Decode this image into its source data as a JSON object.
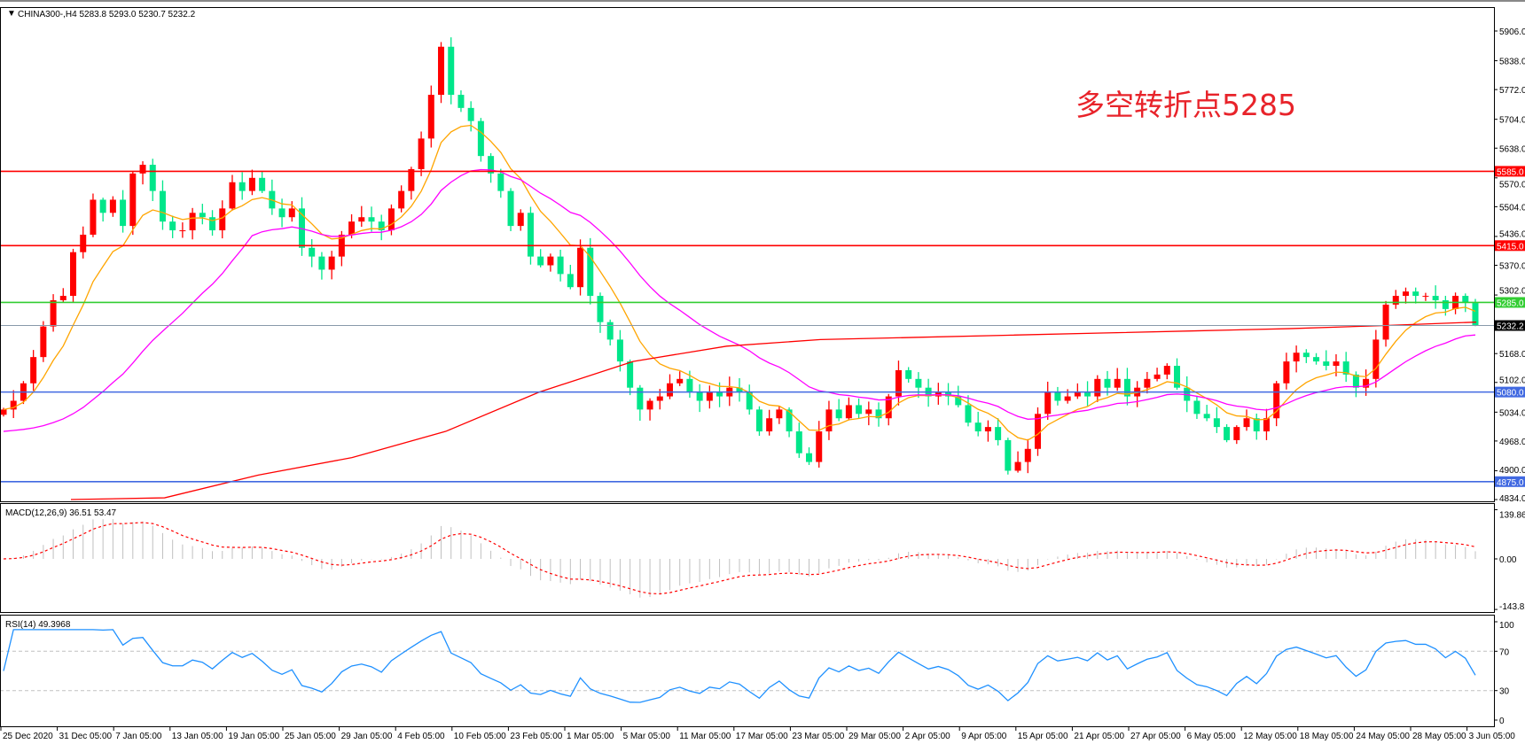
{
  "header": {
    "symbol_line": "CHINA300-,H4  5283.8 5293.0 5230.7 5232.2",
    "dropdown_icon": "triangle-down-icon"
  },
  "annotation": "多空转折点5285",
  "colors": {
    "up_candle": "#ff0000",
    "down_candle": "#00e68a",
    "ma_fast": "#ffa500",
    "ma_mid": "#ff00ff",
    "ma_slow": "#ff0000",
    "rsi": "#1e90ff",
    "macd_hist": "#c0c0c0",
    "macd_signal": "#ff0000"
  },
  "levels": [
    {
      "value": 5585.0,
      "label": "5585.0",
      "color": "#ff0000"
    },
    {
      "value": 5415.0,
      "label": "5415.0",
      "color": "#ff0000"
    },
    {
      "value": 5285.0,
      "label": "5285.0",
      "color": "#32cd32"
    },
    {
      "value": 5232.2,
      "label": "5232.2",
      "color": "#000000",
      "line_color": "#8899aa"
    },
    {
      "value": 5080.0,
      "label": "5080.0",
      "color": "#4169e1"
    },
    {
      "value": 4875.0,
      "label": "4875.0",
      "color": "#4169e1"
    }
  ],
  "price_axis": [
    "5906.0",
    "5838.0",
    "5772.0",
    "5704.0",
    "5638.0",
    "5570.0",
    "5504.0",
    "5436.0",
    "5370.0",
    "5302.0",
    "5168.0",
    "5102.0",
    "5034.0",
    "4968.0",
    "4900.0",
    "4834.0"
  ],
  "macd": {
    "label": "MACD(12,26,9) 36.51 53.47",
    "axis": [
      "139.86",
      "0.00",
      "-143.82"
    ]
  },
  "rsi": {
    "label": "RSI(14) 49.3968",
    "axis": [
      "100",
      "70",
      "30",
      "0"
    ]
  },
  "time_axis": [
    "25 Dec 2020",
    "31 Dec 05:00",
    "7 Jan 05:00",
    "13 Jan 05:00",
    "19 Jan 05:00",
    "25 Jan 05:00",
    "29 Jan 05:00",
    "4 Feb 05:00",
    "10 Feb 05:00",
    "23 Feb 05:00",
    "1 Mar 05:00",
    "5 Mar 05:00",
    "11 Mar 05:00",
    "17 Mar 05:00",
    "23 Mar 05:00",
    "29 Mar 05:00",
    "2 Apr 05:00",
    "9 Apr 05:00",
    "15 Apr 05:00",
    "21 Apr 05:00",
    "27 Apr 05:00",
    "6 May 05:00",
    "12 May 05:00",
    "18 May 05:00",
    "24 May 05:00",
    "28 May 05:00",
    "3 Jun 05:00"
  ],
  "chart_data": {
    "type": "candlestick",
    "symbol": "CHINA300-",
    "timeframe": "H4",
    "last_bar": {
      "open": 5283.8,
      "high": 5293.0,
      "low": 5230.7,
      "close": 5232.2
    },
    "ylim": [
      4834,
      5906
    ],
    "closes": [
      5040,
      5060,
      5100,
      5160,
      5230,
      5290,
      5300,
      5400,
      5440,
      5520,
      5490,
      5520,
      5460,
      5580,
      5600,
      5540,
      5470,
      5450,
      5450,
      5490,
      5480,
      5450,
      5500,
      5560,
      5540,
      5570,
      5540,
      5500,
      5480,
      5500,
      5410,
      5390,
      5360,
      5390,
      5440,
      5470,
      5480,
      5470,
      5450,
      5500,
      5540,
      5590,
      5660,
      5760,
      5870,
      5760,
      5730,
      5700,
      5620,
      5580,
      5540,
      5460,
      5490,
      5390,
      5370,
      5390,
      5350,
      5320,
      5410,
      5300,
      5240,
      5200,
      5150,
      5090,
      5040,
      5060,
      5070,
      5100,
      5110,
      5080,
      5060,
      5080,
      5070,
      5090,
      5080,
      5040,
      4990,
      5020,
      5040,
      4990,
      4940,
      4920,
      4990,
      5040,
      5020,
      5050,
      5030,
      5040,
      5020,
      5070,
      5130,
      5110,
      5090,
      5070,
      5080,
      5070,
      5050,
      5010,
      4990,
      5000,
      4970,
      4900,
      4920,
      4950,
      5030,
      5080,
      5060,
      5070,
      5080,
      5070,
      5110,
      5090,
      5110,
      5070,
      5090,
      5110,
      5120,
      5140,
      5090,
      5060,
      5030,
      5020,
      5000,
      4970,
      5000,
      5020,
      4990,
      5020,
      5100,
      5150,
      5170,
      5160,
      5150,
      5140,
      5150,
      5120,
      5090,
      5110,
      5200,
      5280,
      5300,
      5310,
      5300,
      5300,
      5290,
      5270,
      5300,
      5283.8,
      5232.2
    ],
    "slow_ma": [
      4834,
      4838,
      4890,
      4930,
      4990,
      5080,
      5150,
      5185,
      5200,
      5205,
      5210,
      5215,
      5220,
      5225,
      5232,
      5240
    ],
    "rsi_levels": [
      70,
      30
    ]
  }
}
